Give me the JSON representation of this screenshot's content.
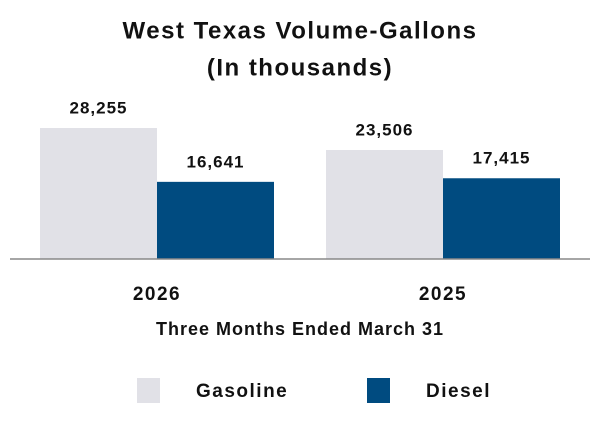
{
  "chart_data": {
    "type": "bar",
    "title": "West Texas Volume-Gallons",
    "subtitle": "(In thousands)",
    "x_label": "Three Months Ended March 31",
    "categories": [
      "2026",
      "2025"
    ],
    "series": [
      {
        "name": "Gasoline",
        "color": "#e1e1e7",
        "values": [
          28255,
          23506
        ],
        "value_labels": [
          "28,255",
          "23,506"
        ]
      },
      {
        "name": "Diesel",
        "color": "#004b80",
        "values": [
          16641,
          17415
        ],
        "value_labels": [
          "16,641",
          "17,415"
        ]
      }
    ],
    "legend": "bottom"
  }
}
